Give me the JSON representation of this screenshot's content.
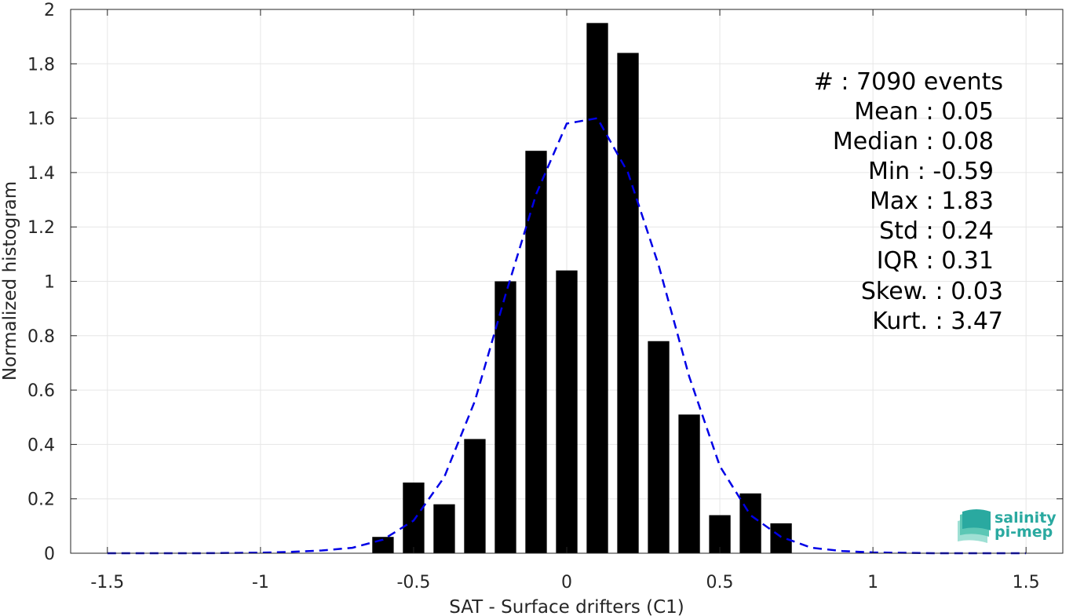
{
  "chart_data": {
    "type": "bar",
    "xlabel": "SAT - Surface drifters (C1)",
    "ylabel": "Normalized histogram",
    "xlim": [
      -1.62,
      1.62
    ],
    "ylim": [
      0,
      2
    ],
    "grid": true,
    "xticks": [
      -1.5,
      -1,
      -0.5,
      0,
      0.5,
      1,
      1.5
    ],
    "xtick_labels": [
      "-1.5",
      "-1",
      "-0.5",
      "0",
      "0.5",
      "1",
      "1.5"
    ],
    "yticks": [
      0,
      0.2,
      0.4,
      0.6,
      0.8,
      1,
      1.2,
      1.4,
      1.6,
      1.8,
      2
    ],
    "ytick_labels": [
      "0",
      "0.2",
      "0.4",
      "0.6",
      "0.8",
      "1",
      "1.2",
      "1.4",
      "1.6",
      "1.8",
      "2"
    ],
    "bar_width": 0.07,
    "bars": [
      {
        "x": -0.6,
        "y": 0.06
      },
      {
        "x": -0.5,
        "y": 0.26
      },
      {
        "x": -0.4,
        "y": 0.18
      },
      {
        "x": -0.3,
        "y": 0.42
      },
      {
        "x": -0.2,
        "y": 1.0
      },
      {
        "x": -0.1,
        "y": 1.48
      },
      {
        "x": 0.0,
        "y": 1.04
      },
      {
        "x": 0.1,
        "y": 1.95
      },
      {
        "x": 0.2,
        "y": 1.84
      },
      {
        "x": 0.3,
        "y": 0.78
      },
      {
        "x": 0.4,
        "y": 0.51
      },
      {
        "x": 0.5,
        "y": 0.14
      },
      {
        "x": 0.6,
        "y": 0.22
      },
      {
        "x": 0.7,
        "y": 0.11
      }
    ],
    "fit_curve": {
      "style": "dashed",
      "color": "#0000e6",
      "x": [
        -1.5,
        -1.2,
        -1.0,
        -0.9,
        -0.8,
        -0.7,
        -0.6,
        -0.5,
        -0.4,
        -0.3,
        -0.2,
        -0.1,
        0.0,
        0.1,
        0.2,
        0.3,
        0.4,
        0.5,
        0.6,
        0.7,
        0.8,
        0.9,
        1.0,
        1.2,
        1.5
      ],
      "y": [
        0.0,
        0.0,
        0.002,
        0.005,
        0.01,
        0.02,
        0.05,
        0.12,
        0.28,
        0.56,
        0.95,
        1.32,
        1.58,
        1.6,
        1.4,
        1.06,
        0.65,
        0.32,
        0.14,
        0.06,
        0.02,
        0.008,
        0.003,
        0.0,
        0.0
      ]
    },
    "bar_color": "#000000",
    "stats": [
      "#  : 7090 events",
      "Mean : 0.05",
      "Median : 0.08",
      "Min : -0.59",
      "Max : 1.83",
      "Std : 0.24",
      "IQR : 0.31",
      "Skew. : 0.03",
      "Kurt. : 3.47"
    ]
  },
  "logo": {
    "line1": "salinity",
    "line2": "pi-mep",
    "color": "#2aa9a0"
  }
}
